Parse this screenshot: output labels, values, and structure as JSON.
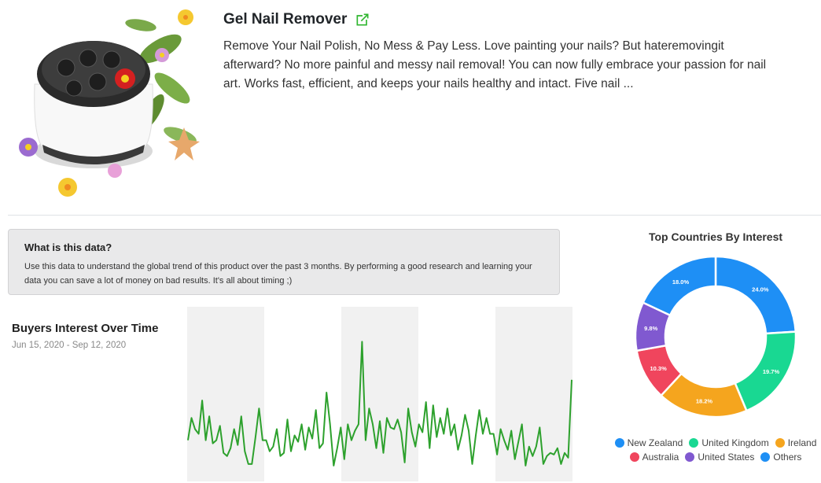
{
  "product": {
    "title": "Gel Nail Remover",
    "description": "Remove Your Nail Polish, No Mess & Pay Less. Love painting your nails? But hateremovingit afterward? No more painful and messy nail removal! You can now fully embrace your passion for nail art. Works fast, efficient, and keeps your nails healthy and intact. Five nail ..."
  },
  "info": {
    "heading": "What is this data?",
    "body": "Use this data to understand the global trend of this product over the past 3 months. By performing a good research and learning your data you can save a lot of money on bad results. It's all about timing ;)"
  },
  "interest": {
    "title": "Buyers Interest Over Time",
    "range": "Jun 15, 2020 - Sep 12, 2020"
  },
  "countries": {
    "title": "Top Countries By Interest"
  },
  "colors": {
    "line": "#2da12d",
    "band": "#f1f1f1",
    "new_zealand": "#1e8ff5",
    "united_kingdom": "#19d892",
    "ireland": "#f5a51e",
    "australia": "#f0455d",
    "united_states": "#8059d0",
    "others": "#1e8ff5"
  },
  "chart_data": [
    {
      "type": "line",
      "title": "Buyers Interest Over Time",
      "xlabel": "",
      "ylabel": "",
      "x_range": [
        "Jun 15, 2020",
        "Sep 12, 2020"
      ],
      "ylim": [
        0,
        100
      ],
      "grid": false,
      "series": [
        {
          "values": [
            20,
            34,
            27,
            24,
            45,
            20,
            35,
            18,
            20,
            29,
            12,
            10,
            15,
            27,
            17,
            35,
            13,
            5,
            5,
            22,
            40,
            20,
            20,
            13,
            16,
            27,
            10,
            12,
            33,
            13,
            23,
            19,
            30,
            14,
            28,
            21,
            39,
            15,
            18,
            50,
            30,
            4,
            15,
            28,
            8,
            30,
            20,
            26,
            30,
            82,
            20,
            40,
            30,
            15,
            32,
            12,
            34,
            28,
            27,
            33,
            25,
            6,
            40,
            25,
            16,
            30,
            25,
            44,
            15,
            42,
            22,
            34,
            24,
            40,
            23,
            30,
            14,
            23,
            36,
            26,
            5,
            23,
            39,
            24,
            34,
            24,
            24,
            11,
            27,
            20,
            14,
            26,
            8,
            19,
            30,
            4,
            16,
            10,
            16,
            28,
            5,
            10,
            12,
            11,
            15,
            5,
            12,
            9,
            58
          ]
        }
      ]
    },
    {
      "type": "pie",
      "title": "Top Countries By Interest",
      "categories": [
        "New Zealand",
        "United Kingdom",
        "Ireland",
        "Australia",
        "United States",
        "Others"
      ],
      "values": [
        24.0,
        19.7,
        18.2,
        10.3,
        9.8,
        18.0
      ],
      "labels": [
        "24.0%",
        "19.7%",
        "18.2%",
        "10.3%",
        "9.8%",
        "18.0%"
      ],
      "legend_position": "bottom"
    }
  ]
}
